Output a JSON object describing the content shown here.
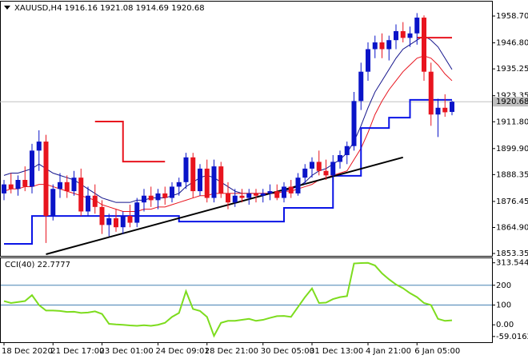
{
  "chart_data": [
    {
      "type": "candlestick",
      "title": "XAUUSD,H4 1916.16 1921.08 1914.69 1920.68",
      "categories": [
        "18 Dec 2020",
        null,
        null,
        null,
        null,
        null,
        null,
        "21 Dec 17:00",
        null,
        null,
        null,
        null,
        null,
        null,
        "23 Dec 01:00",
        null,
        null,
        null,
        null,
        null,
        null,
        null,
        "24 Dec 09:01",
        null,
        null,
        null,
        null,
        null,
        null,
        "28 Dec 21:00",
        null,
        null,
        null,
        null,
        null,
        null,
        null,
        "30 Dec 05:00",
        null,
        null,
        null,
        null,
        null,
        null,
        "31 Dec 13:00",
        null,
        null,
        null,
        null,
        null,
        null,
        null,
        "4 Jan 21:00",
        null,
        null,
        null,
        null,
        null,
        null,
        "6 Jan 05:00",
        null,
        null,
        null,
        null,
        null
      ],
      "open": [
        1880,
        1884,
        1882,
        1886,
        1883,
        1899,
        1903,
        1870,
        1882,
        1885,
        1881,
        1887,
        1872,
        1879,
        1874,
        1866,
        1869,
        1865,
        1870,
        1867,
        1876,
        1879,
        1877,
        1880,
        1878,
        1883,
        1885,
        1896,
        1881,
        1891,
        1878,
        1892,
        1880,
        1876,
        1879,
        1878,
        1880,
        1879,
        1880,
        1881,
        1878,
        1883,
        1880,
        1887,
        1891,
        1894,
        1890,
        1888,
        1894,
        1897,
        1901,
        1921,
        1934,
        1944,
        1947,
        1944,
        1948,
        1952,
        1949,
        1951,
        1958,
        1934,
        1915,
        1918,
        1916.16
      ],
      "high": [
        1886,
        1889,
        1888,
        1892,
        1902,
        1908,
        1906,
        1884,
        1889,
        1888,
        1890,
        1891,
        1883,
        1884,
        1877,
        1871,
        1873,
        1872,
        1875,
        1878,
        1882,
        1883,
        1882,
        1883,
        1885,
        1887,
        1898,
        1898,
        1893,
        1895,
        1895,
        1894,
        1885,
        1882,
        1882,
        1882,
        1882,
        1882,
        1884,
        1884,
        1885,
        1886,
        1889,
        1893,
        1896,
        1899,
        1895,
        1897,
        1899,
        1903,
        1925,
        1938,
        1947,
        1950,
        1951,
        1950,
        1955,
        1956,
        1954,
        1960,
        1959,
        1938,
        1922,
        1924,
        1921.08
      ],
      "low": [
        1877,
        1880,
        1879,
        1881,
        1880,
        1890,
        1858,
        1868,
        1878,
        1878,
        1879,
        1870,
        1870,
        1871,
        1862,
        1861,
        1863,
        1862,
        1865,
        1865,
        1872,
        1874,
        1873,
        1875,
        1876,
        1879,
        1882,
        1878,
        1879,
        1876,
        1876,
        1878,
        1873,
        1874,
        1876,
        1875,
        1876,
        1876,
        1877,
        1877,
        1876,
        1878,
        1879,
        1884,
        1887,
        1888,
        1886,
        1885,
        1891,
        1893,
        1899,
        1917,
        1930,
        1940,
        1940,
        1939,
        1944,
        1947,
        1945,
        1946,
        1930,
        1910,
        1905,
        1914,
        1914.69
      ],
      "close": [
        1884,
        1882,
        1886,
        1883,
        1899,
        1903,
        1870,
        1882,
        1885,
        1881,
        1887,
        1872,
        1879,
        1874,
        1866,
        1869,
        1865,
        1870,
        1867,
        1876,
        1879,
        1877,
        1880,
        1878,
        1883,
        1885,
        1896,
        1881,
        1891,
        1878,
        1892,
        1880,
        1876,
        1879,
        1878,
        1880,
        1879,
        1880,
        1881,
        1878,
        1883,
        1880,
        1887,
        1891,
        1894,
        1890,
        1888,
        1894,
        1897,
        1901,
        1921,
        1934,
        1944,
        1947,
        1944,
        1948,
        1952,
        1949,
        1951,
        1958,
        1934,
        1915,
        1918,
        1916,
        1920.68
      ],
      "up_color": "#0a14c8",
      "down_color": "#e8141e",
      "overlays": [
        {
          "color": "#14148c",
          "style": "line",
          "values": [
            1888,
            1889,
            1889,
            1890,
            1891,
            1893,
            1891,
            1889,
            1888,
            1887,
            1886,
            1884,
            1882,
            1880,
            1878,
            1877,
            1876,
            1876,
            1876,
            1877,
            1877,
            1878,
            1878,
            1878,
            1879,
            1880,
            1883,
            1885,
            1887,
            1888,
            1887,
            1885,
            1883,
            1881,
            1880,
            1880,
            1880,
            1880,
            1880,
            1880,
            1881,
            1882,
            1883,
            1885,
            1888,
            1890,
            1891,
            1893,
            1895,
            1898,
            1903,
            1910,
            1918,
            1925,
            1930,
            1935,
            1940,
            1944,
            1946,
            1948,
            1950,
            1948,
            1945,
            1940,
            1935
          ]
        },
        {
          "color": "#e8141e",
          "style": "line",
          "values": [
            1881,
            1882,
            1882,
            1883,
            1883,
            1884,
            1884,
            1883,
            1882,
            1881,
            1880,
            1879,
            1878,
            1877,
            1875,
            1874,
            1873,
            1872,
            1872,
            1872,
            1873,
            1873,
            1874,
            1874,
            1875,
            1876,
            1877,
            1878,
            1879,
            1879,
            1880,
            1880,
            1880,
            1880,
            1880,
            1880,
            1880,
            1880,
            1880,
            1880,
            1881,
            1881,
            1882,
            1883,
            1884,
            1886,
            1887,
            1888,
            1889,
            1890,
            1895,
            1900,
            1907,
            1915,
            1921,
            1926,
            1930,
            1934,
            1937,
            1940,
            1941,
            1940,
            1937,
            1933,
            1930
          ]
        },
        {
          "color": "#0a14e6",
          "style": "step",
          "values": [
            1857.6,
            1857.6,
            1857.6,
            1857.6,
            1870,
            1870,
            1870,
            1870,
            1870,
            1870,
            1870,
            1870,
            1870,
            1870,
            1870,
            1870,
            1870,
            1870,
            1870,
            1870,
            1870,
            1870,
            1870,
            1870,
            1870,
            1867.5,
            1867.5,
            1867.5,
            1867.5,
            1867.5,
            1867.5,
            1867.5,
            1867.5,
            1867.5,
            1867.5,
            1867.5,
            1867.5,
            1867.5,
            1867.5,
            1867.5,
            1873.6,
            1873.6,
            1873.6,
            1873.6,
            1873.6,
            1873.6,
            1873.6,
            1887.8,
            1887.8,
            1887.8,
            1887.8,
            1909,
            1909,
            1909,
            1909,
            1913.6,
            1913.6,
            1913.6,
            1921.5,
            1921.5,
            1921.5,
            1921.5,
            1921.5,
            1921.5,
            1921.5
          ]
        },
        {
          "color": "#e8141e",
          "style": "step",
          "values": [
            null,
            null,
            null,
            null,
            null,
            null,
            null,
            null,
            null,
            null,
            null,
            null,
            null,
            1911.9,
            1911.9,
            1911.9,
            1911.9,
            1894.1,
            1894.1,
            1894.1,
            1894.1,
            1894.1,
            1894.1,
            1894.1,
            null,
            null,
            null,
            null,
            null,
            null,
            null,
            null,
            null,
            null,
            null,
            null,
            null,
            null,
            null,
            null,
            null,
            null,
            null,
            null,
            null,
            null,
            null,
            null,
            null,
            null,
            null,
            null,
            null,
            null,
            null,
            null,
            null,
            null,
            null,
            1949.1,
            1949.1,
            1949.1,
            1949.1,
            1949.1,
            1949.1
          ]
        }
      ],
      "trendline": {
        "color": "#000000",
        "x": [
          6,
          57
        ],
        "values": [
          1853,
          1896
        ]
      },
      "last_price": 1920.68,
      "ylim": [
        1852.3,
        1965.1
      ],
      "yticks": [
        {
          "value": 1958.7,
          "label": "1958.70"
        },
        {
          "value": 1946.8,
          "label": "1946.80"
        },
        1935.25,
        1923.35,
        {
          "value": 1911.8,
          "label": "1911.80"
        },
        {
          "value": 1899.9,
          "label": "1899.90"
        },
        1888.35,
        1876.45,
        {
          "value": 1864.9,
          "label": "1864.90"
        },
        1853.35
      ]
    },
    {
      "type": "line",
      "title": "CCI(40) 22.7777",
      "color": "#7ddc1e",
      "values": [
        120,
        110,
        115,
        120,
        150,
        100,
        72,
        72,
        70,
        65,
        66,
        60,
        62,
        68,
        55,
        5,
        2,
        0,
        -3,
        -5,
        -2,
        -5,
        0,
        10,
        40,
        60,
        170,
        80,
        70,
        40,
        -56,
        10,
        20,
        20,
        25,
        30,
        20,
        25,
        35,
        44,
        45,
        40,
        90,
        140,
        184,
        110,
        112,
        130,
        140,
        145,
        310,
        312,
        313,
        300,
        260,
        230,
        204,
        185,
        160,
        140,
        110,
        100,
        30,
        20,
        22.7777
      ],
      "levels": [
        200,
        100
      ],
      "level_color": "#4682b4",
      "ylim": [
        -88,
        336.5
      ],
      "yticks": [
        313.5441,
        200,
        100,
        {
          "value": 0,
          "label": "0.00"
        },
        -59.0162
      ]
    }
  ]
}
